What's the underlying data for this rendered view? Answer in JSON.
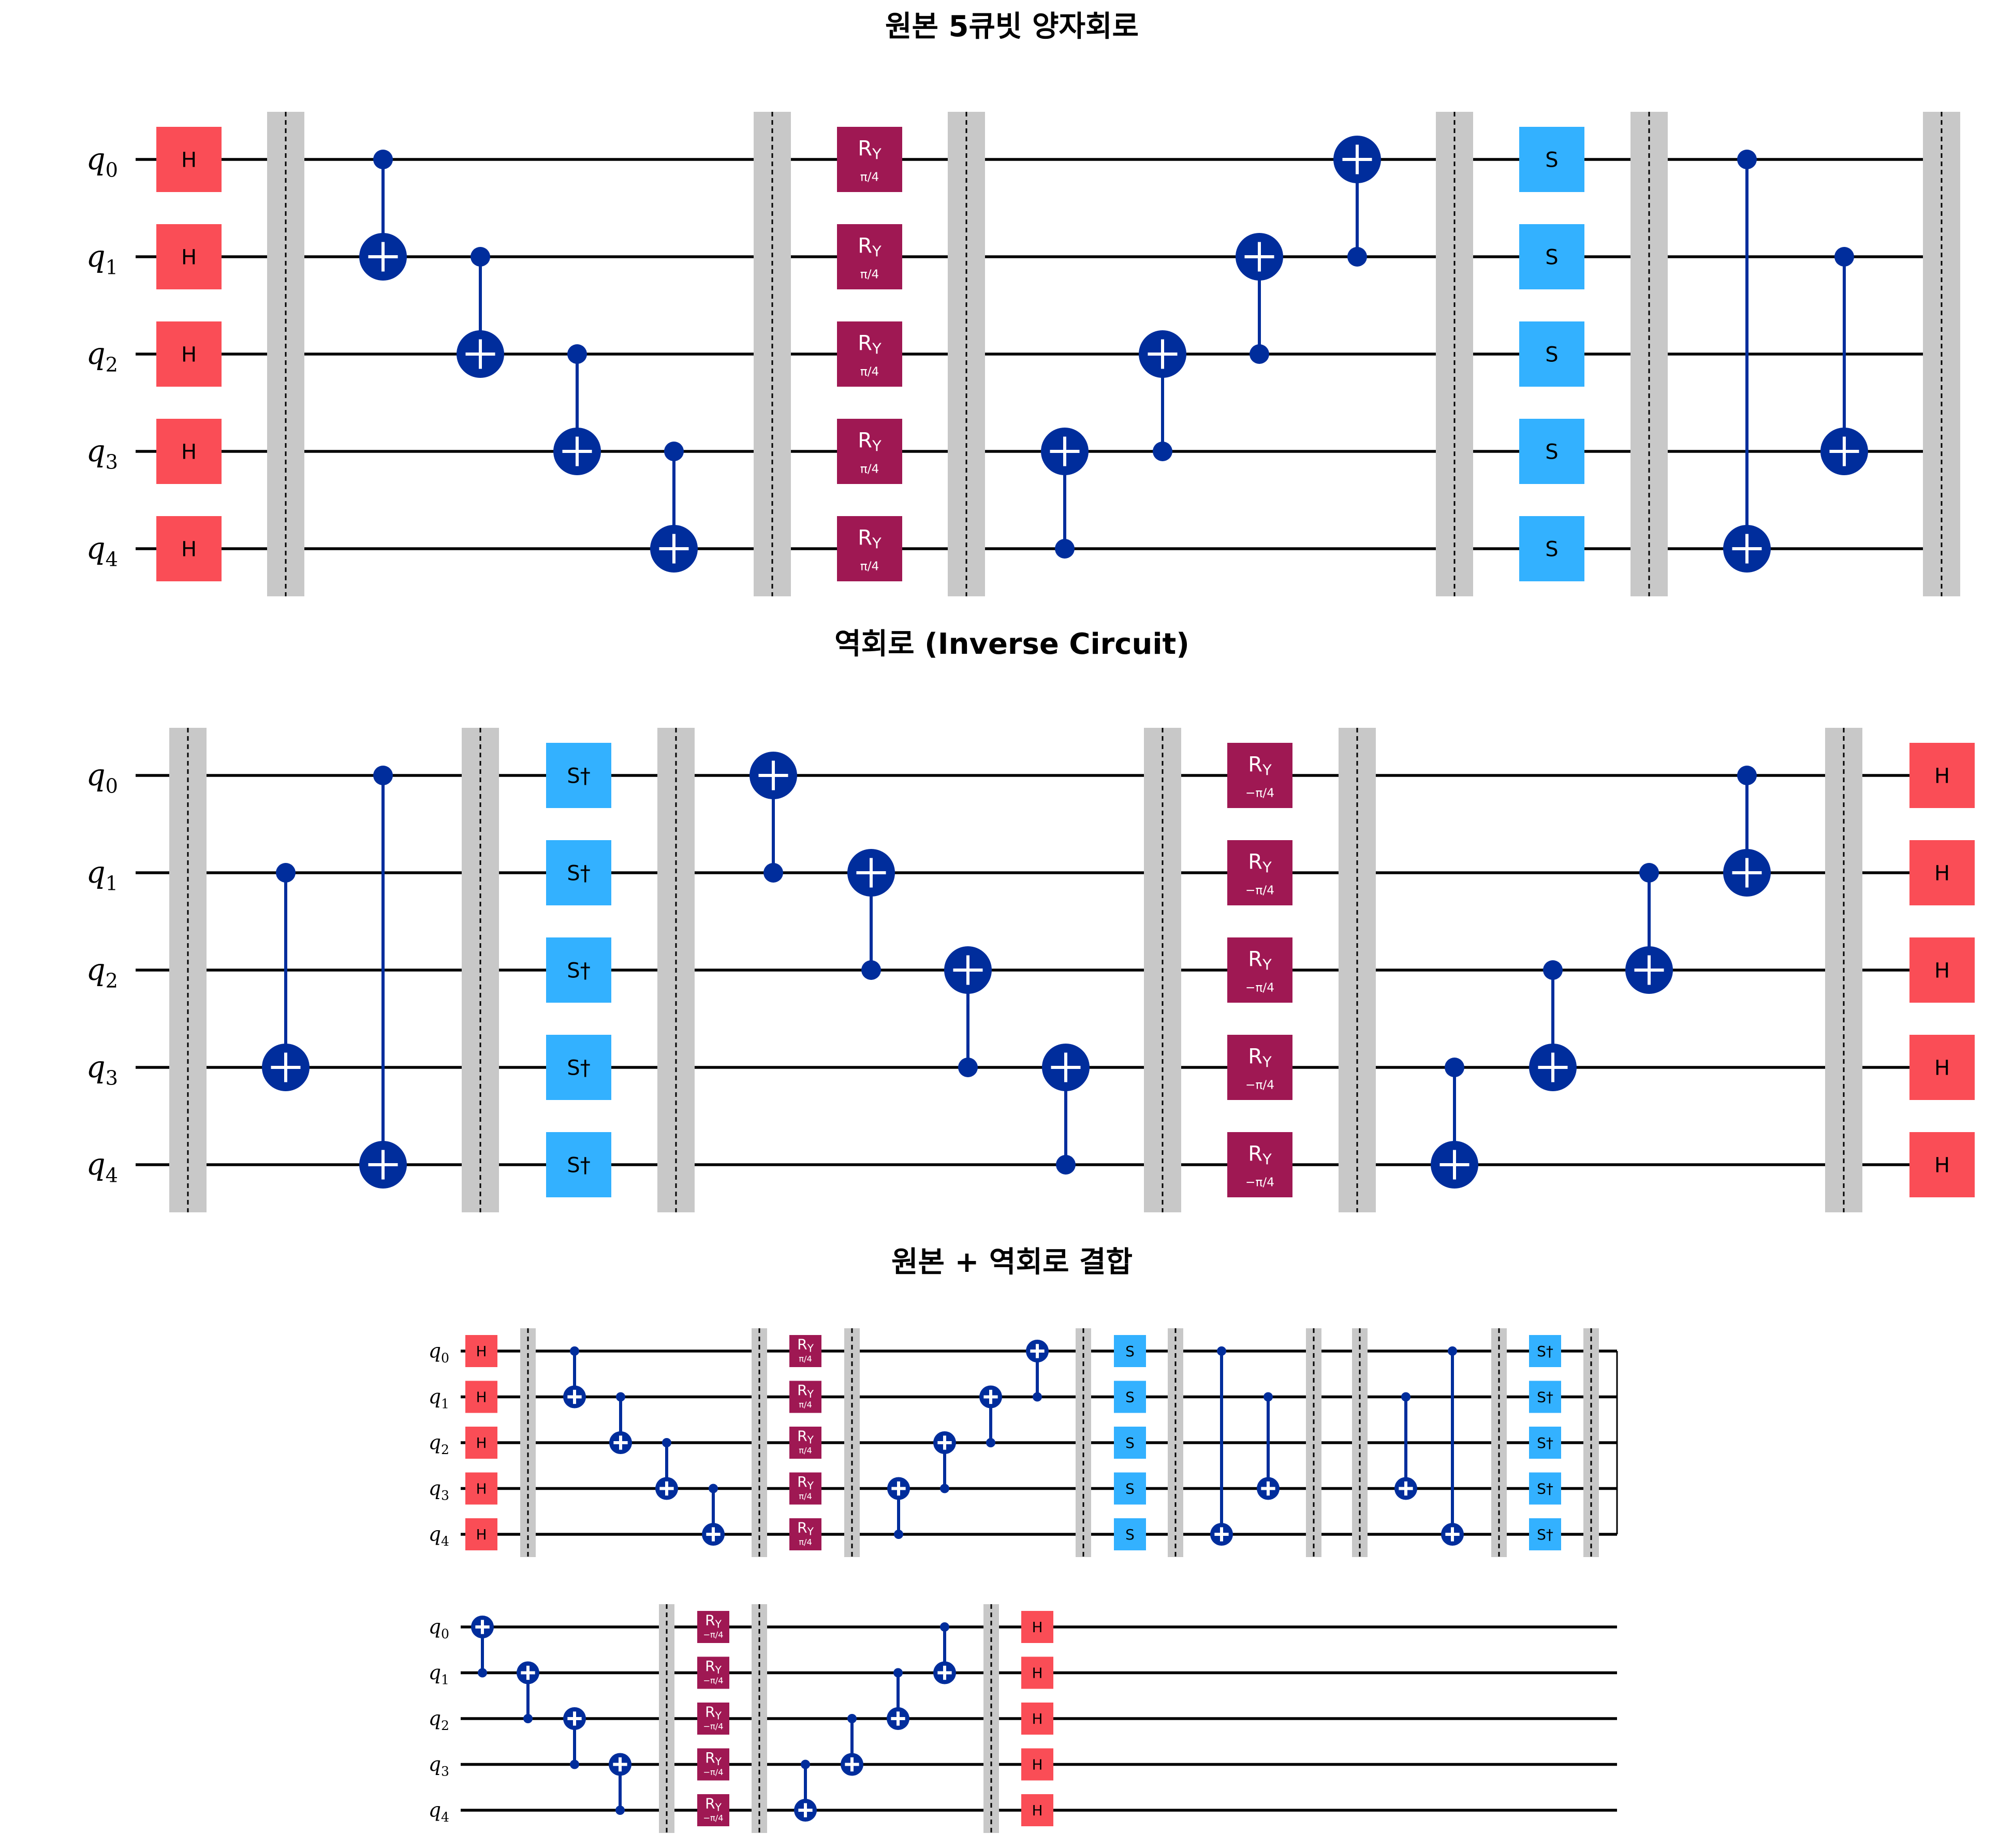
{
  "titles": {
    "original": "원본 5큐빗 양자회로",
    "inverse": "역회로 (Inverse Circuit)",
    "combined": "원본 + 역회로 결합"
  },
  "qubit_labels": [
    "q0",
    "q1",
    "q2",
    "q3",
    "q4"
  ],
  "colors": {
    "h_gate": "#fa4d56",
    "ry_gate": "#9f1853",
    "s_gate": "#33b1ff",
    "cnot": "#002d9c",
    "barrier": "#c8c8c8",
    "wire": "#000000"
  },
  "gate_text": {
    "h": "H",
    "s": "S",
    "sdg": "S†",
    "ry": "RY",
    "ry_param": "π/4",
    "ry_param_neg": "−π/4"
  },
  "circuits": {
    "original": [
      {
        "op": "H",
        "qubits": [
          0,
          1,
          2,
          3,
          4
        ]
      },
      {
        "op": "barrier"
      },
      {
        "op": "cx",
        "control": 0,
        "target": 1
      },
      {
        "op": "cx",
        "control": 1,
        "target": 2
      },
      {
        "op": "cx",
        "control": 2,
        "target": 3
      },
      {
        "op": "cx",
        "control": 3,
        "target": 4
      },
      {
        "op": "barrier"
      },
      {
        "op": "RY",
        "param": "π/4",
        "qubits": [
          0,
          1,
          2,
          3,
          4
        ]
      },
      {
        "op": "barrier"
      },
      {
        "op": "cx",
        "control": 4,
        "target": 3
      },
      {
        "op": "cx",
        "control": 3,
        "target": 2
      },
      {
        "op": "cx",
        "control": 2,
        "target": 1
      },
      {
        "op": "cx",
        "control": 1,
        "target": 0
      },
      {
        "op": "barrier"
      },
      {
        "op": "S",
        "qubits": [
          0,
          1,
          2,
          3,
          4
        ]
      },
      {
        "op": "barrier"
      },
      {
        "op": "cx",
        "control": 0,
        "target": 4
      },
      {
        "op": "cx",
        "control": 1,
        "target": 3
      },
      {
        "op": "barrier"
      }
    ],
    "inverse": [
      {
        "op": "barrier"
      },
      {
        "op": "cx",
        "control": 1,
        "target": 3
      },
      {
        "op": "cx",
        "control": 0,
        "target": 4
      },
      {
        "op": "barrier"
      },
      {
        "op": "Sdg",
        "qubits": [
          0,
          1,
          2,
          3,
          4
        ]
      },
      {
        "op": "barrier"
      },
      {
        "op": "cx",
        "control": 1,
        "target": 0
      },
      {
        "op": "cx",
        "control": 2,
        "target": 1
      },
      {
        "op": "cx",
        "control": 3,
        "target": 2
      },
      {
        "op": "cx",
        "control": 4,
        "target": 3
      },
      {
        "op": "barrier"
      },
      {
        "op": "RY",
        "param": "−π/4",
        "qubits": [
          0,
          1,
          2,
          3,
          4
        ]
      },
      {
        "op": "barrier"
      },
      {
        "op": "cx",
        "control": 3,
        "target": 4
      },
      {
        "op": "cx",
        "control": 2,
        "target": 3
      },
      {
        "op": "cx",
        "control": 1,
        "target": 2
      },
      {
        "op": "cx",
        "control": 0,
        "target": 1
      },
      {
        "op": "barrier"
      },
      {
        "op": "H",
        "qubits": [
          0,
          1,
          2,
          3,
          4
        ]
      }
    ],
    "combined_row1": [
      {
        "op": "H",
        "qubits": [
          0,
          1,
          2,
          3,
          4
        ]
      },
      {
        "op": "barrier"
      },
      {
        "op": "cx",
        "control": 0,
        "target": 1
      },
      {
        "op": "cx",
        "control": 1,
        "target": 2
      },
      {
        "op": "cx",
        "control": 2,
        "target": 3
      },
      {
        "op": "cx",
        "control": 3,
        "target": 4
      },
      {
        "op": "barrier"
      },
      {
        "op": "RY",
        "param": "π/4",
        "qubits": [
          0,
          1,
          2,
          3,
          4
        ]
      },
      {
        "op": "barrier"
      },
      {
        "op": "cx",
        "control": 4,
        "target": 3
      },
      {
        "op": "cx",
        "control": 3,
        "target": 2
      },
      {
        "op": "cx",
        "control": 2,
        "target": 1
      },
      {
        "op": "cx",
        "control": 1,
        "target": 0
      },
      {
        "op": "barrier"
      },
      {
        "op": "S",
        "qubits": [
          0,
          1,
          2,
          3,
          4
        ]
      },
      {
        "op": "barrier"
      },
      {
        "op": "cx",
        "control": 0,
        "target": 4
      },
      {
        "op": "cx",
        "control": 1,
        "target": 3
      },
      {
        "op": "barrier"
      },
      {
        "op": "barrier"
      },
      {
        "op": "cx",
        "control": 1,
        "target": 3
      },
      {
        "op": "cx",
        "control": 0,
        "target": 4
      },
      {
        "op": "barrier"
      },
      {
        "op": "Sdg",
        "qubits": [
          0,
          1,
          2,
          3,
          4
        ]
      },
      {
        "op": "barrier"
      }
    ],
    "combined_row2": [
      {
        "op": "cx",
        "control": 1,
        "target": 0
      },
      {
        "op": "cx",
        "control": 2,
        "target": 1
      },
      {
        "op": "cx",
        "control": 3,
        "target": 2
      },
      {
        "op": "cx",
        "control": 4,
        "target": 3
      },
      {
        "op": "barrier"
      },
      {
        "op": "RY",
        "param": "−π/4",
        "qubits": [
          0,
          1,
          2,
          3,
          4
        ]
      },
      {
        "op": "barrier"
      },
      {
        "op": "cx",
        "control": 3,
        "target": 4
      },
      {
        "op": "cx",
        "control": 2,
        "target": 3
      },
      {
        "op": "cx",
        "control": 1,
        "target": 2
      },
      {
        "op": "cx",
        "control": 0,
        "target": 1
      },
      {
        "op": "barrier"
      },
      {
        "op": "H",
        "qubits": [
          0,
          1,
          2,
          3,
          4
        ]
      }
    ]
  }
}
